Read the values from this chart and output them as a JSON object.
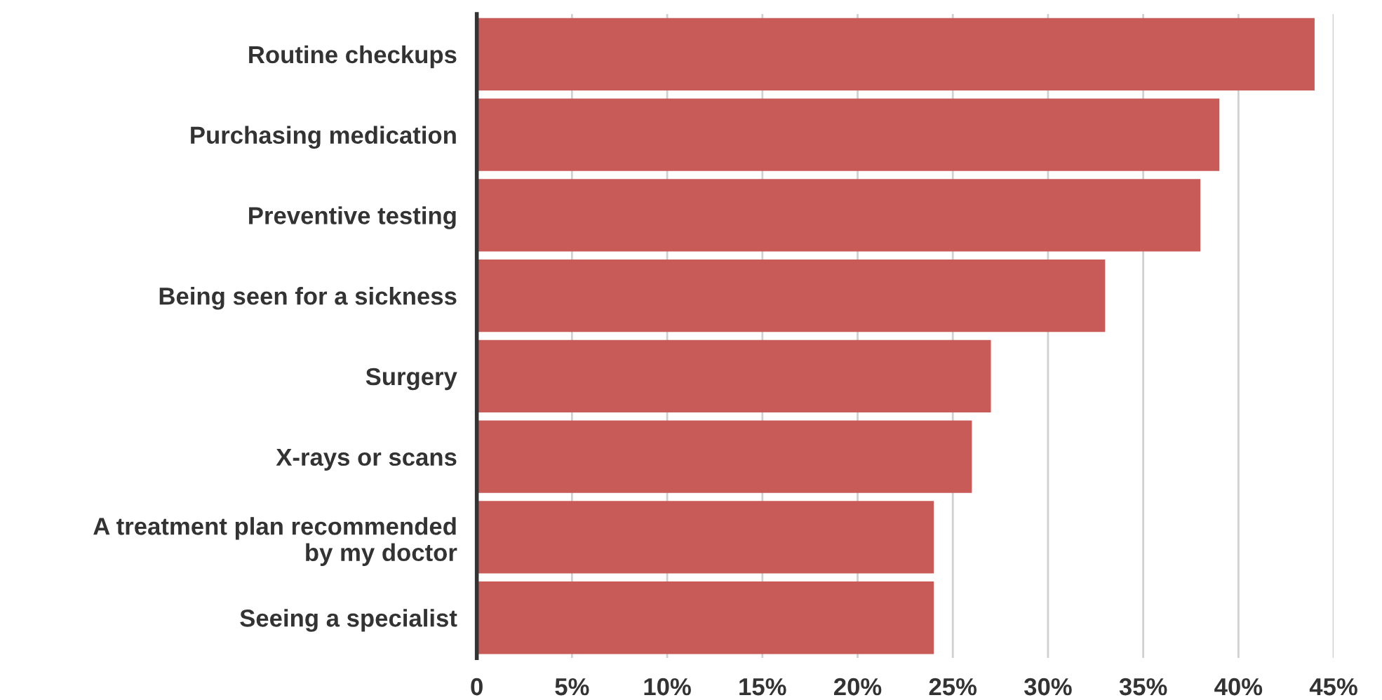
{
  "chart_data": {
    "type": "bar",
    "orientation": "horizontal",
    "categories": [
      "Routine checkups",
      "Purchasing medication",
      "Preventive testing",
      "Being seen for a sickness",
      "Surgery",
      "X-rays or scans",
      "A treatment plan recommended\nby my doctor",
      "Seeing a specialist"
    ],
    "values": [
      44,
      39,
      38,
      33,
      27,
      26,
      24,
      24
    ],
    "color": "#c85a57",
    "xlim": [
      0,
      45
    ],
    "xticks": [
      0,
      {
        "value": 5,
        "label": "5%"
      },
      {
        "value": 10,
        "label": "10%"
      },
      {
        "value": 15,
        "label": "15%"
      },
      {
        "value": 20,
        "label": "20%"
      },
      {
        "value": 25,
        "label": "25%"
      },
      {
        "value": 30,
        "label": "30%"
      },
      {
        "value": 35,
        "label": "35%"
      },
      {
        "value": 40,
        "label": "40%"
      },
      {
        "value": 45,
        "label": "45%"
      }
    ],
    "grid": "x"
  }
}
